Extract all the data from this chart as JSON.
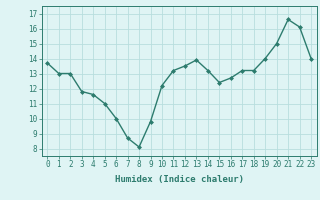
{
  "x": [
    0,
    1,
    2,
    3,
    4,
    5,
    6,
    7,
    8,
    9,
    10,
    11,
    12,
    13,
    14,
    15,
    16,
    17,
    18,
    19,
    20,
    21,
    22,
    23
  ],
  "y": [
    13.7,
    13.0,
    13.0,
    11.8,
    11.6,
    11.0,
    10.0,
    8.7,
    8.1,
    9.8,
    12.2,
    13.2,
    13.5,
    13.9,
    13.2,
    12.4,
    12.7,
    13.2,
    13.2,
    14.0,
    15.0,
    16.6,
    16.1,
    14.0
  ],
  "xlabel": "Humidex (Indice chaleur)",
  "ylim": [
    7.5,
    17.5
  ],
  "xlim": [
    -0.5,
    23.5
  ],
  "yticks": [
    8,
    9,
    10,
    11,
    12,
    13,
    14,
    15,
    16,
    17
  ],
  "xticks": [
    0,
    1,
    2,
    3,
    4,
    5,
    6,
    7,
    8,
    9,
    10,
    11,
    12,
    13,
    14,
    15,
    16,
    17,
    18,
    19,
    20,
    21,
    22,
    23
  ],
  "line_color": "#2d7c6e",
  "marker": "D",
  "marker_size": 2.0,
  "line_width": 1.0,
  "bg_color": "#dff4f4",
  "grid_color": "#b8dede",
  "tick_color": "#2d7c6e",
  "tick_fontsize": 5.5,
  "xlabel_fontsize": 6.5
}
